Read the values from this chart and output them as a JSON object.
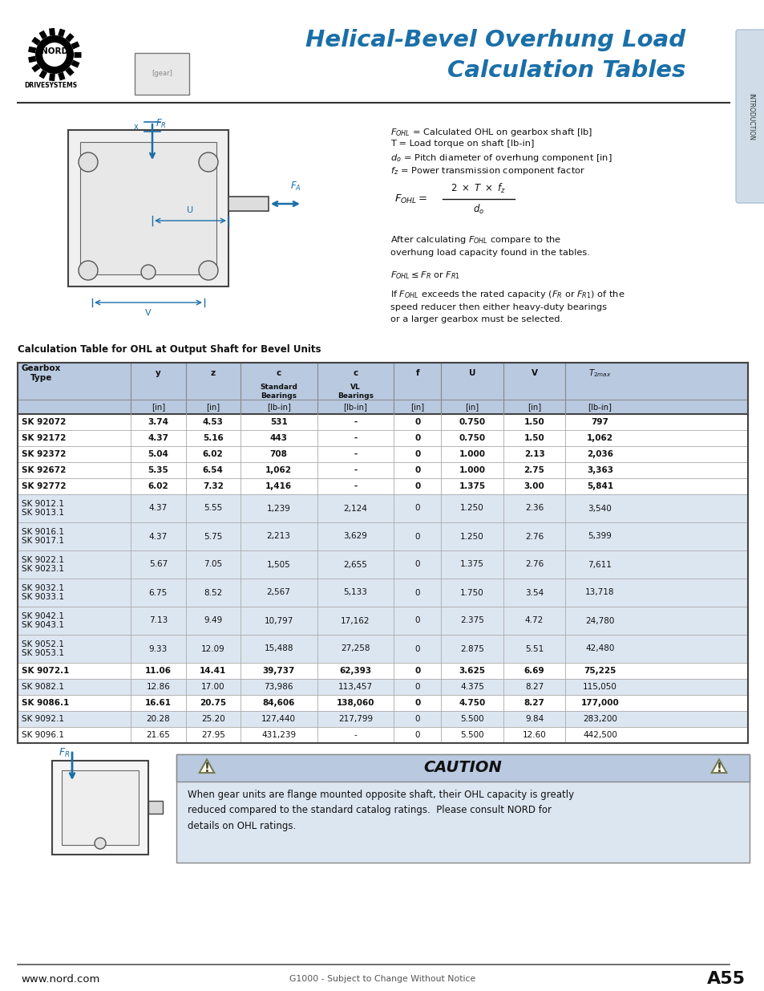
{
  "title_line1": "Helical-Bevel Overhung Load",
  "title_line2": "Calculation Tables",
  "title_color": "#1a6fa8",
  "page_bg": "#ffffff",
  "header_bg": "#b8c9e0",
  "alt_row_bg": "#dce6f1",
  "table_title": "Calculation Table for OHL at Output Shaft for Bevel Units",
  "rows": [
    [
      "SK 92072",
      "3.74",
      "4.53",
      "531",
      "-",
      "0",
      "0.750",
      "1.50",
      "797"
    ],
    [
      "SK 92172",
      "4.37",
      "5.16",
      "443",
      "-",
      "0",
      "0.750",
      "1.50",
      "1,062"
    ],
    [
      "SK 92372",
      "5.04",
      "6.02",
      "708",
      "-",
      "0",
      "1.000",
      "2.13",
      "2,036"
    ],
    [
      "SK 92672",
      "5.35",
      "6.54",
      "1,062",
      "-",
      "0",
      "1.000",
      "2.75",
      "3,363"
    ],
    [
      "SK 92772",
      "6.02",
      "7.32",
      "1,416",
      "-",
      "0",
      "1.375",
      "3.00",
      "5,841"
    ],
    [
      "SK 9012.1\nSK 9013.1",
      "4.37",
      "5.55",
      "1,239",
      "2,124",
      "0",
      "1.250",
      "2.36",
      "3,540"
    ],
    [
      "SK 9016.1\nSK 9017.1",
      "4.37",
      "5.75",
      "2,213",
      "3,629",
      "0",
      "1.250",
      "2.76",
      "5,399"
    ],
    [
      "SK 9022.1\nSK 9023.1",
      "5.67",
      "7.05",
      "1,505",
      "2,655",
      "0",
      "1.375",
      "2.76",
      "7,611"
    ],
    [
      "SK 9032.1\nSK 9033.1",
      "6.75",
      "8.52",
      "2,567",
      "5,133",
      "0",
      "1.750",
      "3.54",
      "13,718"
    ],
    [
      "SK 9042.1\nSK 9043.1",
      "7.13",
      "9.49",
      "10,797",
      "17,162",
      "0",
      "2.375",
      "4.72",
      "24,780"
    ],
    [
      "SK 9052.1\nSK 9053.1",
      "9.33",
      "12.09",
      "15,488",
      "27,258",
      "0",
      "2.875",
      "5.51",
      "42,480"
    ],
    [
      "SK 9072.1",
      "11.06",
      "14.41",
      "39,737",
      "62,393",
      "0",
      "3.625",
      "6.69",
      "75,225"
    ],
    [
      "SK 9082.1",
      "12.86",
      "17.00",
      "73,986",
      "113,457",
      "0",
      "4.375",
      "8.27",
      "115,050"
    ],
    [
      "SK 9086.1",
      "16.61",
      "20.75",
      "84,606",
      "138,060",
      "0",
      "4.750",
      "8.27",
      "177,000"
    ],
    [
      "SK 9092.1",
      "20.28",
      "25.20",
      "127,440",
      "217,799",
      "0",
      "5.500",
      "9.84",
      "283,200"
    ],
    [
      "SK 9096.1",
      "21.65",
      "27.95",
      "431,239",
      "-",
      "0",
      "5.500",
      "12.60",
      "442,500"
    ]
  ],
  "alt_rows": [
    5,
    6,
    7,
    8,
    9,
    10,
    12,
    14
  ],
  "bold_rows": [
    0,
    1,
    2,
    3,
    4,
    11,
    13
  ],
  "footer_left": "www.nord.com",
  "footer_center": "G1000 - Subject to Change Without Notice",
  "footer_right": "A55",
  "side_tab_color": "#c8d8e8"
}
